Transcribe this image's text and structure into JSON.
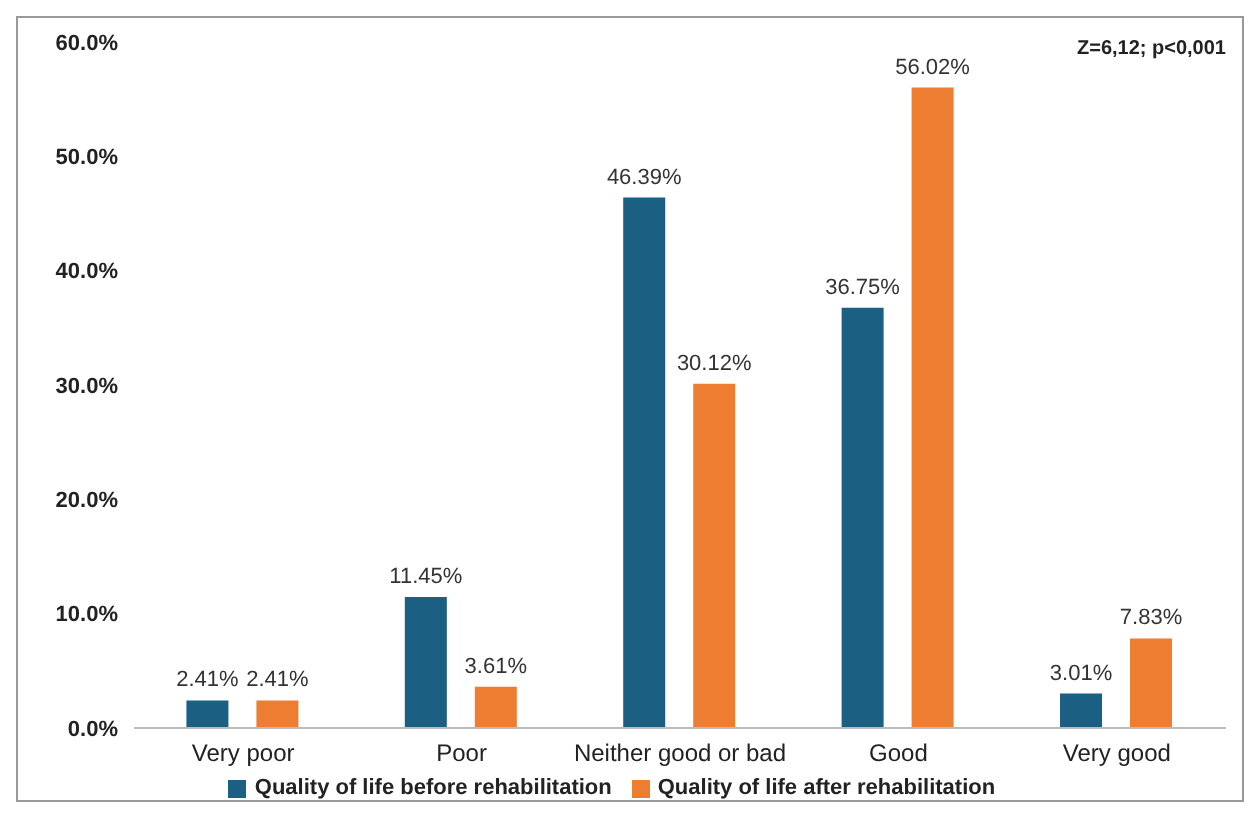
{
  "chart_data": {
    "type": "bar",
    "categories": [
      "Very poor",
      "Poor",
      "Neither good or bad",
      "Good",
      "Very good"
    ],
    "series": [
      {
        "name": "Quality of life before rehabilitation",
        "color": "#1b5f82",
        "values": [
          2.41,
          11.45,
          46.39,
          36.75,
          3.01
        ],
        "value_labels": [
          "2.41%",
          "11.45%",
          "46.39%",
          "36.75%",
          "3.01%"
        ]
      },
      {
        "name": "Quality of life after rehabilitation",
        "color": "#ed7d31",
        "values": [
          2.41,
          3.61,
          30.12,
          56.02,
          7.83
        ],
        "value_labels": [
          "2.41%",
          "3.61%",
          "30.12%",
          "56.02%",
          "7.83%"
        ]
      }
    ],
    "ylim": [
      0,
      60
    ],
    "yticks": [
      {
        "value": 0,
        "label": "0.0%"
      },
      {
        "value": 10,
        "label": "10.0%"
      },
      {
        "value": 20,
        "label": "20.0%"
      },
      {
        "value": 30,
        "label": "30.0%"
      },
      {
        "value": 40,
        "label": "40.0%"
      },
      {
        "value": 50,
        "label": "50.0%"
      },
      {
        "value": 60,
        "label": "60.0%"
      }
    ],
    "grid": false,
    "legend": "bottom",
    "annotations": [
      "Z=6,12; p<0,001"
    ]
  }
}
